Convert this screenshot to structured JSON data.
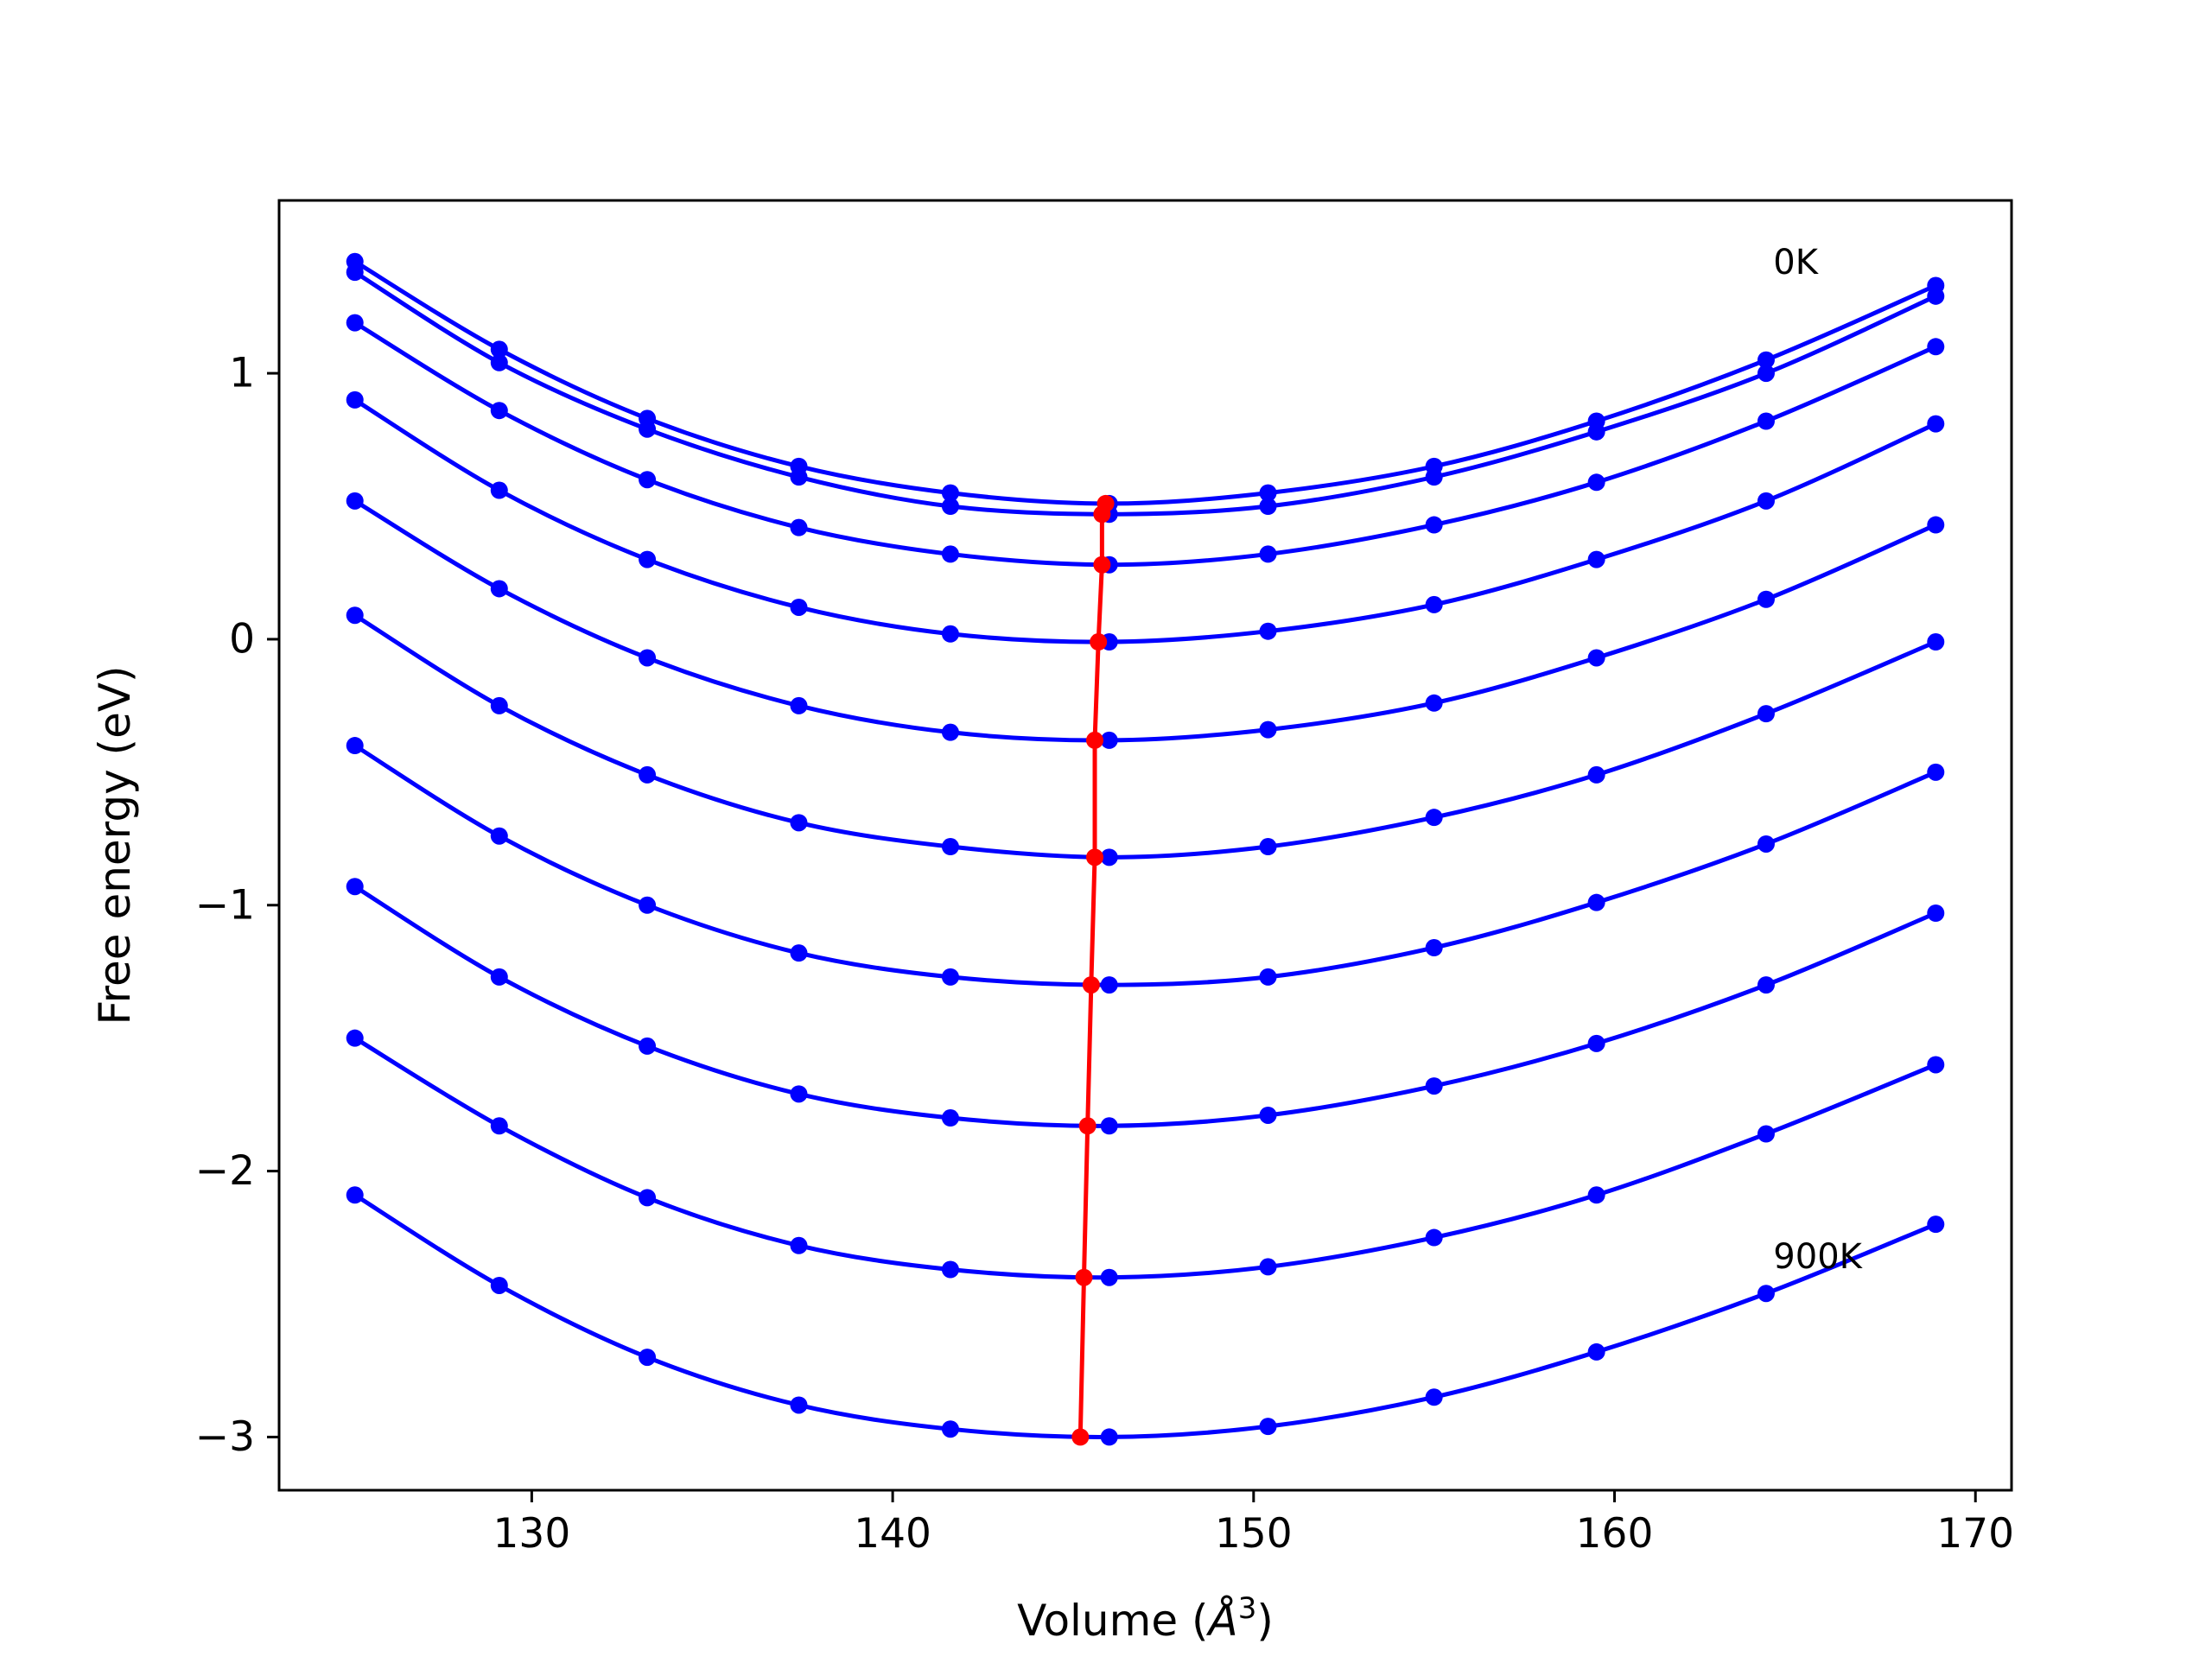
{
  "chart_data": {
    "type": "line",
    "title": "",
    "xlabel": "Volume (Å³)",
    "xlabel_parts": {
      "main": "Volume (",
      "symbol": "Å",
      "sup": "3",
      "close": ")"
    },
    "ylabel": "Free energy (eV)",
    "xlim": [
      123,
      171
    ],
    "ylim": [
      -3.2,
      1.65
    ],
    "x_ticks": [
      130,
      140,
      150,
      160,
      170
    ],
    "x_tick_labels": [
      "130",
      "140",
      "150",
      "160",
      "170"
    ],
    "y_ticks": [
      1,
      0,
      -1,
      -2,
      -3
    ],
    "y_tick_labels": [
      "1",
      "0",
      "−1",
      "−2",
      "−3"
    ],
    "grid": false,
    "legend": "none",
    "x": [
      125.1,
      129.1,
      133.2,
      137.4,
      141.6,
      146.0,
      150.4,
      155.0,
      159.5,
      164.2,
      168.9
    ],
    "series_color": "#0000ff",
    "series": [
      {
        "values": [
          1.42,
          1.09,
          0.83,
          0.65,
          0.55,
          0.51,
          0.55,
          0.65,
          0.82,
          1.05,
          1.33
        ]
      },
      {
        "values": [
          1.38,
          1.04,
          0.79,
          0.61,
          0.5,
          0.47,
          0.5,
          0.61,
          0.78,
          1.0,
          1.29
        ]
      },
      {
        "values": [
          1.19,
          0.86,
          0.6,
          0.42,
          0.32,
          0.28,
          0.32,
          0.43,
          0.59,
          0.82,
          1.1
        ]
      },
      {
        "values": [
          0.9,
          0.56,
          0.3,
          0.12,
          0.02,
          -0.01,
          0.03,
          0.13,
          0.3,
          0.52,
          0.81
        ]
      },
      {
        "values": [
          0.52,
          0.19,
          -0.07,
          -0.25,
          -0.35,
          -0.38,
          -0.34,
          -0.24,
          -0.07,
          0.15,
          0.43
        ]
      },
      {
        "values": [
          0.09,
          -0.25,
          -0.51,
          -0.69,
          -0.78,
          -0.82,
          -0.78,
          -0.67,
          -0.51,
          -0.28,
          -0.01
        ]
      },
      {
        "values": [
          -0.4,
          -0.74,
          -1.0,
          -1.18,
          -1.27,
          -1.3,
          -1.27,
          -1.16,
          -0.99,
          -0.77,
          -0.5
        ]
      },
      {
        "values": [
          -0.93,
          -1.27,
          -1.53,
          -1.71,
          -1.8,
          -1.83,
          -1.79,
          -1.68,
          -1.52,
          -1.3,
          -1.03
        ]
      },
      {
        "values": [
          -1.5,
          -1.83,
          -2.1,
          -2.28,
          -2.37,
          -2.4,
          -2.36,
          -2.25,
          -2.09,
          -1.86,
          -1.6
        ]
      },
      {
        "values": [
          -2.09,
          -2.43,
          -2.7,
          -2.88,
          -2.97,
          -3.0,
          -2.96,
          -2.85,
          -2.68,
          -2.46,
          -2.2
        ]
      }
    ],
    "minimum_line": {
      "color": "#ff0000",
      "x": [
        145.9,
        145.8,
        145.8,
        145.7,
        145.6,
        145.6,
        145.5,
        145.4,
        145.3,
        145.2
      ],
      "y": [
        0.51,
        0.47,
        0.28,
        -0.01,
        -0.38,
        -0.82,
        -1.3,
        -1.83,
        -2.4,
        -3.0
      ]
    },
    "annotations": [
      {
        "text": "0K",
        "x": 164.4,
        "y": 1.41
      },
      {
        "text": "900K",
        "x": 164.4,
        "y": -2.33
      }
    ]
  }
}
